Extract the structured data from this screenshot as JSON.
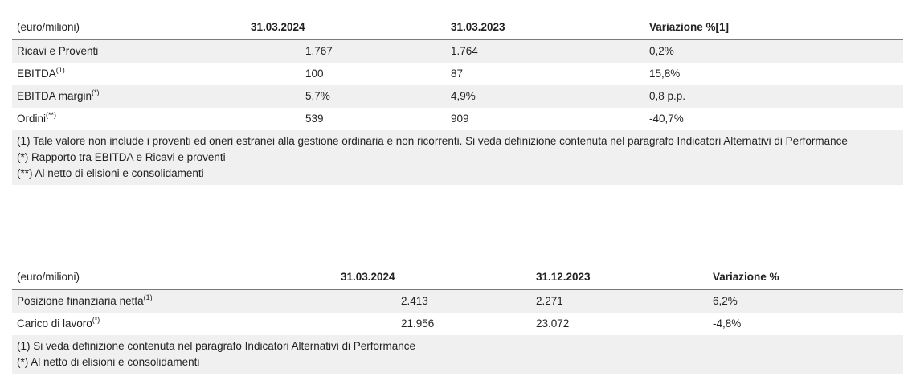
{
  "table1": {
    "header": [
      "(euro/milioni)",
      "31.03.2024",
      "31.03.2023",
      "Variazione %[1]"
    ],
    "rows": [
      {
        "label": "Ricavi e Proventi",
        "sup": "",
        "v1": "1.767",
        "v2": "1.764",
        "v3": "0,2%"
      },
      {
        "label": "EBITDA",
        "sup": "(1)",
        "v1": "100",
        "v2": "87",
        "v3": "15,8%"
      },
      {
        "label": "EBITDA margin",
        "sup": "(*)",
        "v1": "5,7%",
        "v2": "4,9%",
        "v3": "0,8 p.p."
      },
      {
        "label": "Ordini",
        "sup": "(**)",
        "v1": "539",
        "v2": "909",
        "v3": "-40,7%"
      }
    ],
    "notes": [
      "(1) Tale valore non include i proventi ed oneri estranei alla gestione ordinaria e non ricorrenti. Si veda definizione contenuta nel paragrafo Indicatori Alternativi di Performance",
      "(*) Rapporto tra EBITDA e Ricavi e proventi",
      "(**) Al netto di elisioni e consolidamenti"
    ]
  },
  "table2": {
    "header": [
      "(euro/milioni)",
      "31.03.2024",
      "31.12.2023",
      "Variazione %"
    ],
    "rows": [
      {
        "label": "Posizione finanziaria netta",
        "sup": "(1)",
        "v1": "2.413",
        "v2": "2.271",
        "v3": "6,2%"
      },
      {
        "label": "Carico di lavoro",
        "sup": "(*)",
        "v1": "21.956",
        "v2": "23.072",
        "v3": "-4,8%"
      }
    ],
    "notes": [
      "(1) Si veda definizione contenuta nel paragrafo Indicatori Alternativi di Performance",
      "(*) Al netto di elisioni e consolidamenti"
    ]
  }
}
